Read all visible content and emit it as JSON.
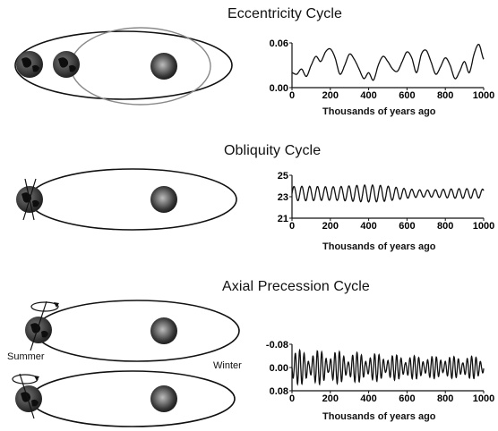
{
  "panels": [
    {
      "title": "Eccentricity Cycle",
      "chart": {
        "yticks": [
          "0.06",
          "0.00"
        ],
        "xticks": [
          "0",
          "200",
          "400",
          "600",
          "800",
          "1000"
        ],
        "xlabel": "Thousands of years ago"
      }
    },
    {
      "title": "Obliquity Cycle",
      "chart": {
        "yticks": [
          "25",
          "23",
          "21"
        ],
        "xticks": [
          "0",
          "200",
          "400",
          "600",
          "800",
          "1000"
        ],
        "xlabel": "Thousands of years ago"
      }
    },
    {
      "title": "Axial Precession Cycle",
      "labels": {
        "summer": "Summer",
        "winter": "Winter"
      },
      "chart": {
        "yticks": [
          "-0.08",
          "0.00",
          "0.08"
        ],
        "xticks": [
          "0",
          "200",
          "400",
          "600",
          "800",
          "1000"
        ],
        "xlabel": "Thousands of years ago"
      }
    }
  ],
  "chart_data": [
    {
      "type": "line",
      "title": "Eccentricity Cycle",
      "xlabel": "Thousands of years ago",
      "ylabel": "",
      "xlim": [
        0,
        1000
      ],
      "ylim": [
        0.0,
        0.06
      ],
      "x": [
        0,
        25,
        50,
        75,
        100,
        125,
        150,
        175,
        200,
        225,
        250,
        275,
        300,
        325,
        350,
        375,
        400,
        425,
        450,
        475,
        500,
        525,
        550,
        575,
        600,
        625,
        650,
        675,
        700,
        725,
        750,
        775,
        800,
        825,
        850,
        875,
        900,
        925,
        950,
        975,
        1000
      ],
      "y": [
        0.02,
        0.018,
        0.025,
        0.015,
        0.03,
        0.042,
        0.035,
        0.048,
        0.052,
        0.04,
        0.018,
        0.03,
        0.045,
        0.038,
        0.025,
        0.012,
        0.02,
        0.01,
        0.03,
        0.042,
        0.035,
        0.025,
        0.022,
        0.035,
        0.048,
        0.04,
        0.02,
        0.045,
        0.05,
        0.035,
        0.018,
        0.028,
        0.04,
        0.03,
        0.012,
        0.022,
        0.035,
        0.02,
        0.045,
        0.058,
        0.038
      ]
    },
    {
      "type": "line",
      "title": "Obliquity Cycle",
      "xlabel": "Thousands of years ago",
      "ylabel": "",
      "xlim": [
        0,
        1000
      ],
      "ylim": [
        21,
        25
      ],
      "period_kyr": 41,
      "mean": 23.3
    },
    {
      "type": "line",
      "title": "Axial Precession Cycle",
      "xlabel": "Thousands of years ago",
      "ylabel": "",
      "xlim": [
        0,
        1000
      ],
      "ylim": [
        -0.08,
        0.08
      ],
      "period_kyr": 23,
      "mean": 0.0
    }
  ]
}
